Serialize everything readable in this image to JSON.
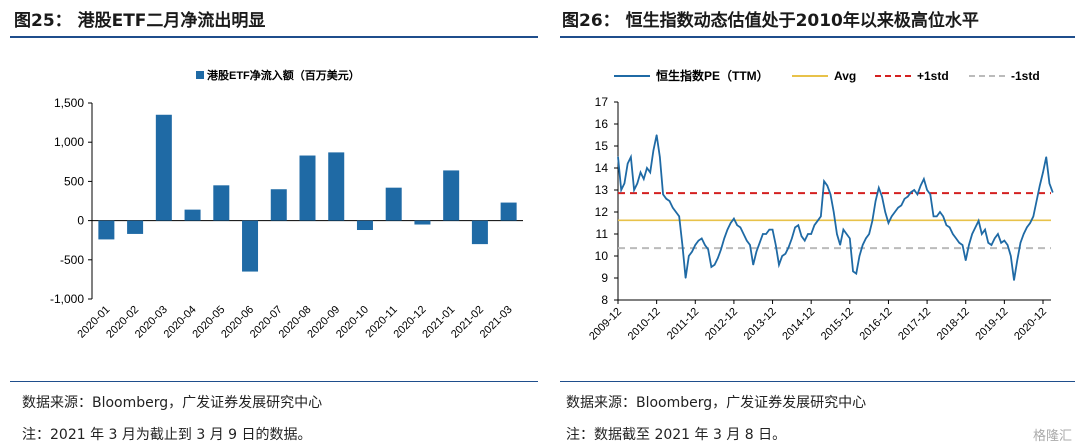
{
  "left": {
    "title": "图25：  港股ETF二月净流出明显",
    "source": "数据来源：Bloomberg，广发证券发展研究中心",
    "note": "注：2021 年 3 月为截止到 3 月 9 日的数据。"
  },
  "right": {
    "title": "图26：  恒生指数动态估值处于2010年以来极高位水平",
    "source": "数据来源：Bloomberg，广发证券发展研究中心",
    "note": "注：数据截至 2021 年 3 月 8 日。"
  },
  "watermark": "格隆汇",
  "chart_data": [
    {
      "type": "bar",
      "legend_position": "top",
      "series": [
        {
          "name": "港股ETF净流入额（百万美元）",
          "color": "#1f6aa5",
          "values": [
            -240,
            -170,
            1350,
            140,
            450,
            -650,
            400,
            830,
            870,
            -120,
            420,
            -50,
            640,
            -300,
            230
          ]
        }
      ],
      "categories": [
        "2020-01",
        "2020-02",
        "2020-03",
        "2020-04",
        "2020-05",
        "2020-06",
        "2020-07",
        "2020-08",
        "2020-09",
        "2020-10",
        "2020-11",
        "2020-12",
        "2021-01",
        "2021-02",
        "2021-03"
      ],
      "yticks": [
        "1,500",
        "1,000",
        "500",
        "0",
        "-500",
        "-1,000"
      ],
      "ylim": [
        -1000,
        1500
      ],
      "grid": false
    },
    {
      "type": "line",
      "legend_position": "top",
      "ylim": [
        8,
        17
      ],
      "yticks": [
        "17",
        "16",
        "15",
        "14",
        "13",
        "12",
        "11",
        "10",
        "9",
        "8"
      ],
      "xticks": [
        "2009-12",
        "2010-12",
        "2011-12",
        "2012-12",
        "2013-12",
        "2014-12",
        "2015-12",
        "2016-12",
        "2017-12",
        "2018-12",
        "2019-12",
        "2020-12"
      ],
      "x_start": "2009-12",
      "x_frequency": "monthly",
      "grid": false,
      "series": [
        {
          "name": "恒生指数PE（TTM）",
          "color": "#1f6aa5",
          "values": [
            14.5,
            13.0,
            13.3,
            14.2,
            14.5,
            13.0,
            13.3,
            13.8,
            13.5,
            14.0,
            13.8,
            14.8,
            15.5,
            14.5,
            12.8,
            12.6,
            12.5,
            12.2,
            12.0,
            11.8,
            10.5,
            9.0,
            10.0,
            10.2,
            10.5,
            10.7,
            10.8,
            10.5,
            10.3,
            9.5,
            9.6,
            9.9,
            10.3,
            10.8,
            11.2,
            11.5,
            11.7,
            11.4,
            11.3,
            11.0,
            10.7,
            10.5,
            9.6,
            10.2,
            10.6,
            11.0,
            11.0,
            11.2,
            11.2,
            10.5,
            9.6,
            10.0,
            10.1,
            10.4,
            10.8,
            11.3,
            11.4,
            10.9,
            10.7,
            11.0,
            11.0,
            11.4,
            11.6,
            11.8,
            13.4,
            13.2,
            12.8,
            12.0,
            11.0,
            10.5,
            11.2,
            11.0,
            10.8,
            9.3,
            9.2,
            10.0,
            10.5,
            10.8,
            11.0,
            11.6,
            12.5,
            13.1,
            12.7,
            12.0,
            11.5,
            11.8,
            12.0,
            12.2,
            12.3,
            12.6,
            12.7,
            12.9,
            13.0,
            12.8,
            13.2,
            13.5,
            13.0,
            12.8,
            11.8,
            11.8,
            12.0,
            11.8,
            11.4,
            11.3,
            11.0,
            10.8,
            10.6,
            10.5,
            9.8,
            10.5,
            11.0,
            11.3,
            11.6,
            11.0,
            11.2,
            10.6,
            10.5,
            10.8,
            11.0,
            10.6,
            10.7,
            10.5,
            10.0,
            8.9,
            9.8,
            10.6,
            11.0,
            11.3,
            11.5,
            11.8,
            12.5,
            13.2,
            13.8,
            14.5,
            13.3,
            12.9
          ]
        },
        {
          "name": "Avg",
          "color": "#e8c24a",
          "constant": 11.62
        },
        {
          "name": "+1std",
          "color": "#d42020",
          "dash": true,
          "constant": 12.86
        },
        {
          "name": "-1std",
          "color": "#bbbbbb",
          "dash": true,
          "constant": 10.36
        }
      ]
    }
  ]
}
